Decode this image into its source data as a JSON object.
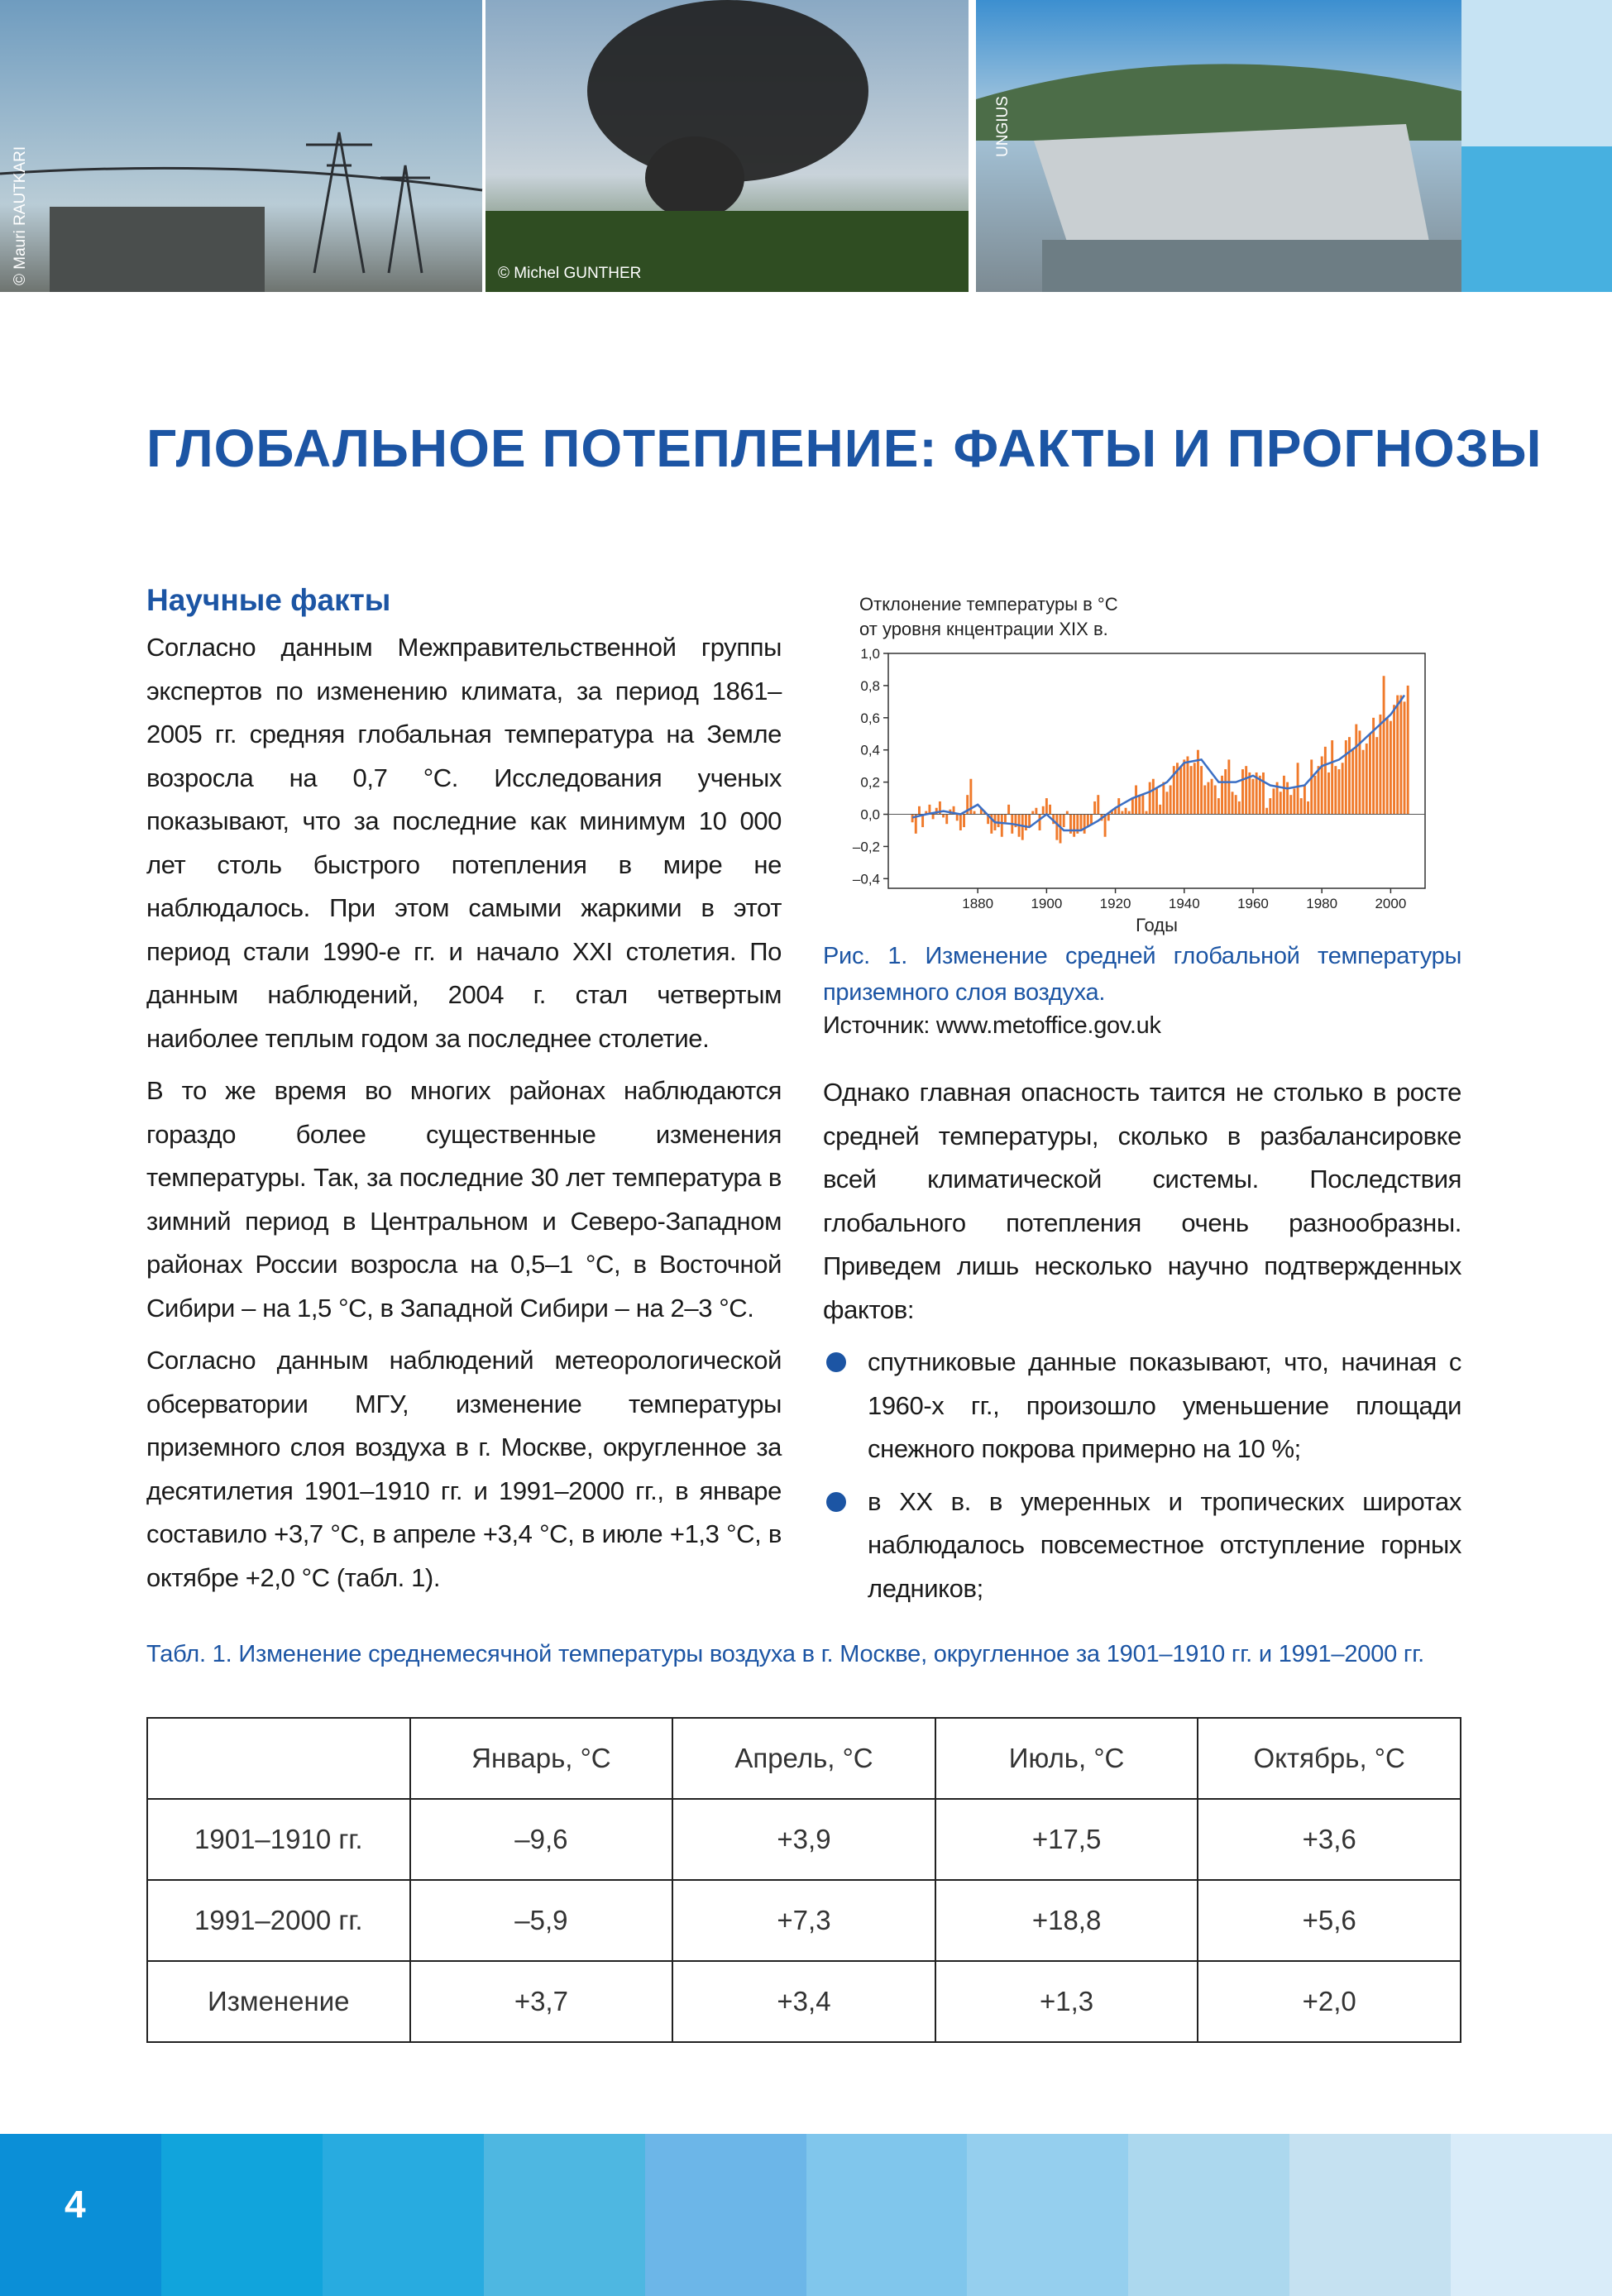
{
  "photos": {
    "credits": [
      "© Mauri RAUTKARI",
      "© Michel GUNTHER",
      "UNGIUS"
    ]
  },
  "header": {
    "title": "ГЛОБАЛЬНОЕ ПОТЕПЛЕНИЕ: ФАКТЫ И ПРОГНОЗЫ"
  },
  "left": {
    "heading": "Научные факты",
    "paragraphs": [
      "Согласно данным Межправительственной группы экспертов по изменению климата, за период 1861–2005 гг. средняя глобальная температура на Земле возросла на 0,7 °С. Исследования ученых показывают, что за последние как минимум 10 000 лет столь быстрого потепления в мире не наблюдалось. При этом самыми жаркими в этот период стали 1990-е гг. и начало XXI столетия. По данным наблюдений, 2004 г. стал четвертым наиболее теплым годом за последнее столетие.",
      "В то же время во многих районах наблюдаются гораздо более существенные изменения температуры. Так, за последние 30 лет температура в зимний период в Центральном и Северо-Западном районах России возросла на 0,5–1 °С, в Восточной Сибири – на 1,5 °С, в Западной Сибири – на 2–3 °С.",
      "Согласно данным наблюдений метеорологической обсерватории МГУ, изменение температуры приземного слоя воздуха в г. Москве, округленное за десятилетия 1901–1910 гг. и 1991–2000 гг., в январе составило +3,7 °С, в апреле +3,4 °С, в июле +1,3 °С, в октябре +2,0 °С (табл. 1)."
    ]
  },
  "figure": {
    "chart": {
      "type": "bar",
      "title": [
        "Отклонение температуры в °C",
        "от уровня кнцентрации XIX в."
      ],
      "x_label": "Годы",
      "xlim": [
        1854,
        2010
      ],
      "ylim": [
        -0.46,
        1.0
      ],
      "xticks": [
        1880,
        1900,
        1920,
        1940,
        1960,
        1980,
        2000
      ],
      "yticks": [
        {
          "value": 1.0,
          "label": "1,0"
        },
        {
          "value": 0.8,
          "label": "0,8"
        },
        {
          "value": 0.6,
          "label": "0,6"
        },
        {
          "value": 0.4,
          "label": "0,4"
        },
        {
          "value": 0.2,
          "label": "0,2"
        },
        {
          "value": 0.0,
          "label": "0,0"
        },
        {
          "value": -0.2,
          "label": "–0,2"
        },
        {
          "value": -0.4,
          "label": "–0,4"
        }
      ],
      "bars": {
        "color": "#f07a2b",
        "x": [
          1861,
          1862,
          1863,
          1864,
          1865,
          1866,
          1867,
          1868,
          1869,
          1870,
          1871,
          1872,
          1873,
          1874,
          1875,
          1876,
          1877,
          1878,
          1879,
          1880,
          1881,
          1882,
          1883,
          1884,
          1885,
          1886,
          1887,
          1888,
          1889,
          1890,
          1891,
          1892,
          1893,
          1894,
          1895,
          1896,
          1897,
          1898,
          1899,
          1900,
          1901,
          1902,
          1903,
          1904,
          1905,
          1906,
          1907,
          1908,
          1909,
          1910,
          1911,
          1912,
          1913,
          1914,
          1915,
          1916,
          1917,
          1918,
          1919,
          1920,
          1921,
          1922,
          1923,
          1924,
          1925,
          1926,
          1927,
          1928,
          1929,
          1930,
          1931,
          1932,
          1933,
          1934,
          1935,
          1936,
          1937,
          1938,
          1939,
          1940,
          1941,
          1942,
          1943,
          1944,
          1945,
          1946,
          1947,
          1948,
          1949,
          1950,
          1951,
          1952,
          1953,
          1954,
          1955,
          1956,
          1957,
          1958,
          1959,
          1960,
          1961,
          1962,
          1963,
          1964,
          1965,
          1966,
          1967,
          1968,
          1969,
          1970,
          1971,
          1972,
          1973,
          1974,
          1975,
          1976,
          1977,
          1978,
          1979,
          1980,
          1981,
          1982,
          1983,
          1984,
          1985,
          1986,
          1987,
          1988,
          1989,
          1990,
          1991,
          1992,
          1993,
          1994,
          1995,
          1996,
          1997,
          1998,
          1999,
          2000,
          2001,
          2002,
          2003,
          2004,
          2005
        ],
        "values": [
          -0.05,
          -0.12,
          0.05,
          -0.08,
          0.02,
          0.06,
          -0.03,
          0.04,
          0.08,
          -0.02,
          -0.06,
          0.03,
          0.05,
          -0.04,
          -0.1,
          -0.08,
          0.12,
          0.22,
          0.02,
          0.0,
          0.04,
          0.02,
          -0.06,
          -0.12,
          -0.1,
          -0.08,
          -0.14,
          -0.05,
          0.06,
          -0.12,
          -0.08,
          -0.14,
          -0.16,
          -0.1,
          -0.08,
          0.02,
          0.04,
          -0.1,
          0.05,
          0.1,
          0.06,
          -0.06,
          -0.16,
          -0.18,
          -0.08,
          0.02,
          -0.12,
          -0.14,
          -0.12,
          -0.1,
          -0.12,
          -0.08,
          -0.06,
          0.08,
          0.12,
          -0.04,
          -0.14,
          -0.04,
          0.02,
          0.04,
          0.1,
          0.02,
          0.04,
          0.02,
          0.1,
          0.18,
          0.12,
          0.12,
          0.02,
          0.2,
          0.22,
          0.16,
          0.06,
          0.2,
          0.14,
          0.18,
          0.3,
          0.32,
          0.3,
          0.34,
          0.36,
          0.3,
          0.32,
          0.4,
          0.3,
          0.18,
          0.2,
          0.22,
          0.18,
          0.1,
          0.24,
          0.28,
          0.34,
          0.14,
          0.12,
          0.08,
          0.28,
          0.3,
          0.26,
          0.22,
          0.26,
          0.24,
          0.26,
          0.04,
          0.1,
          0.16,
          0.2,
          0.14,
          0.24,
          0.2,
          0.12,
          0.16,
          0.32,
          0.1,
          0.18,
          0.08,
          0.34,
          0.24,
          0.3,
          0.36,
          0.42,
          0.26,
          0.46,
          0.3,
          0.28,
          0.32,
          0.46,
          0.48,
          0.4,
          0.56,
          0.52,
          0.4,
          0.44,
          0.5,
          0.6,
          0.48,
          0.62,
          0.86,
          0.6,
          0.58,
          0.68,
          0.74,
          0.74,
          0.7,
          0.8
        ]
      },
      "line": {
        "color": "#3b6fc4",
        "x": [
          1861,
          1865,
          1870,
          1875,
          1880,
          1885,
          1890,
          1895,
          1900,
          1905,
          1910,
          1915,
          1920,
          1925,
          1930,
          1935,
          1940,
          1945,
          1950,
          1955,
          1960,
          1965,
          1970,
          1975,
          1980,
          1985,
          1990,
          1995,
          2000,
          2004
        ],
        "values": [
          -0.02,
          0.0,
          0.02,
          0.0,
          0.06,
          -0.05,
          -0.06,
          -0.08,
          0.0,
          -0.1,
          -0.1,
          -0.04,
          0.04,
          0.1,
          0.14,
          0.2,
          0.32,
          0.34,
          0.2,
          0.2,
          0.24,
          0.18,
          0.16,
          0.18,
          0.3,
          0.34,
          0.42,
          0.52,
          0.62,
          0.74
        ]
      }
    },
    "caption": "Рис. 1. Изменение средней глобальной температуры приземного слоя воздуха.",
    "source": "Источник: www.metoffice.gov.uk"
  },
  "right": {
    "paragraph": "Однако главная опасность таится не столько в росте средней температуры, сколько в разбалансировке всей климатической системы. Последствия глобального потепления очень разнообразны. Приведем лишь несколько научно подтвержденных фактов:",
    "bullets": [
      "спутниковые данные показывают, что, начиная с 1960-х гг., произошло уменьшение площади снежного покрова примерно на 10 %;",
      "в XX в. в умеренных и тропических широтах наблюдалось повсеместное отступление горных ледников;"
    ]
  },
  "table": {
    "caption": "Табл. 1. Изменение среднемесячной температуры воздуха в г. Москве, округленное за 1901–1910 гг. и 1991–2000 гг.",
    "header": [
      "Январь, °С",
      "Апрель, °С",
      "Июль, °С",
      "Октябрь, °С"
    ],
    "rows": [
      [
        "1901–1910 гг.",
        "–9,6",
        "+3,9",
        "+17,5",
        "+3,6"
      ],
      [
        "1991–2000 гг.",
        "–5,9",
        "+7,3",
        "+18,8",
        "+5,6"
      ],
      [
        "Изменение",
        "+3,7",
        "+3,4",
        "+1,3",
        "+2,0"
      ]
    ]
  },
  "footer": {
    "page_number": "4"
  }
}
